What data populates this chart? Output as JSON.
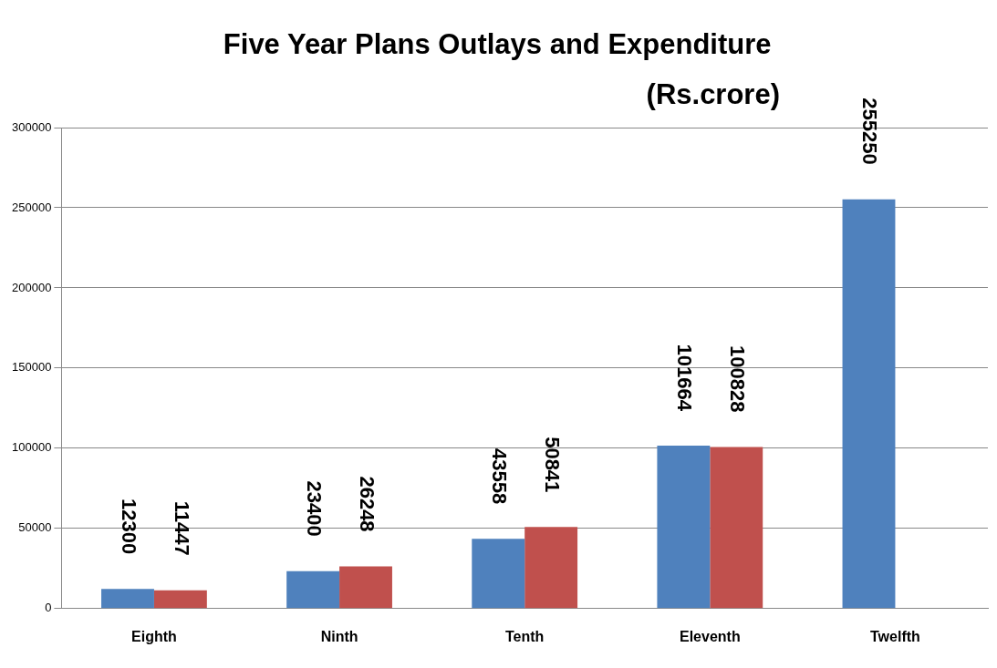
{
  "chart_data": {
    "type": "bar",
    "title": "Five Year Plans Outlays and Expenditure",
    "subtitle": "(Rs.crore)",
    "categories": [
      "Eighth",
      "Ninth",
      "Tenth",
      "Eleventh",
      "Twelfth"
    ],
    "series": [
      {
        "color": "#4f81bd",
        "values": [
          12300,
          23400,
          43558,
          101664,
          255250
        ]
      },
      {
        "color": "#c0504d",
        "values": [
          11447,
          26248,
          50841,
          100828,
          null
        ]
      }
    ],
    "ylim": [
      0,
      300000
    ],
    "yticks": [
      0,
      50000,
      100000,
      150000,
      200000,
      250000,
      300000
    ],
    "grid": "y",
    "legend": false,
    "data_labels": true
  }
}
